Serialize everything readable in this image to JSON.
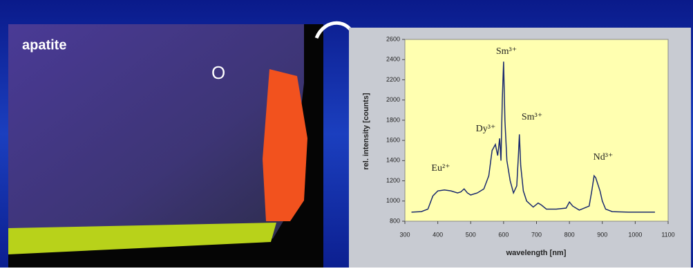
{
  "photo": {
    "label": "apatite",
    "marker": "O"
  },
  "chart_data": {
    "type": "line",
    "xlabel": "wavelength [nm]",
    "ylabel": "rel. intensity [counts]",
    "x": [
      320,
      350,
      370,
      385,
      400,
      420,
      440,
      460,
      470,
      480,
      490,
      500,
      520,
      540,
      555,
      565,
      575,
      582,
      588,
      592,
      596,
      600,
      604,
      610,
      620,
      630,
      640,
      645,
      648,
      652,
      660,
      670,
      690,
      705,
      715,
      730,
      760,
      790,
      800,
      810,
      830,
      860,
      868,
      875,
      880,
      885,
      893,
      900,
      910,
      930,
      980,
      1000,
      1060
    ],
    "values": [
      890,
      895,
      920,
      1050,
      1100,
      1110,
      1100,
      1080,
      1090,
      1120,
      1080,
      1060,
      1080,
      1120,
      1250,
      1500,
      1560,
      1450,
      1620,
      1400,
      2000,
      2380,
      1800,
      1400,
      1200,
      1080,
      1150,
      1450,
      1660,
      1350,
      1100,
      1000,
      940,
      980,
      960,
      920,
      920,
      930,
      990,
      950,
      910,
      950,
      1100,
      1250,
      1230,
      1180,
      1100,
      1000,
      920,
      895,
      890,
      890,
      890
    ],
    "color": "#1a2a6e",
    "xlim": [
      300,
      1100
    ],
    "xticks": [
      300,
      400,
      500,
      600,
      700,
      800,
      900,
      1000,
      1100
    ],
    "ylim": [
      800,
      2600
    ],
    "yticks": [
      800,
      1000,
      1200,
      1400,
      1600,
      1800,
      2000,
      2200,
      2400,
      2600
    ],
    "annotations": [
      "Sm³⁺",
      "Dy³⁺",
      "Sm³⁺",
      "Eu²⁺",
      "Nd³⁺"
    ]
  }
}
